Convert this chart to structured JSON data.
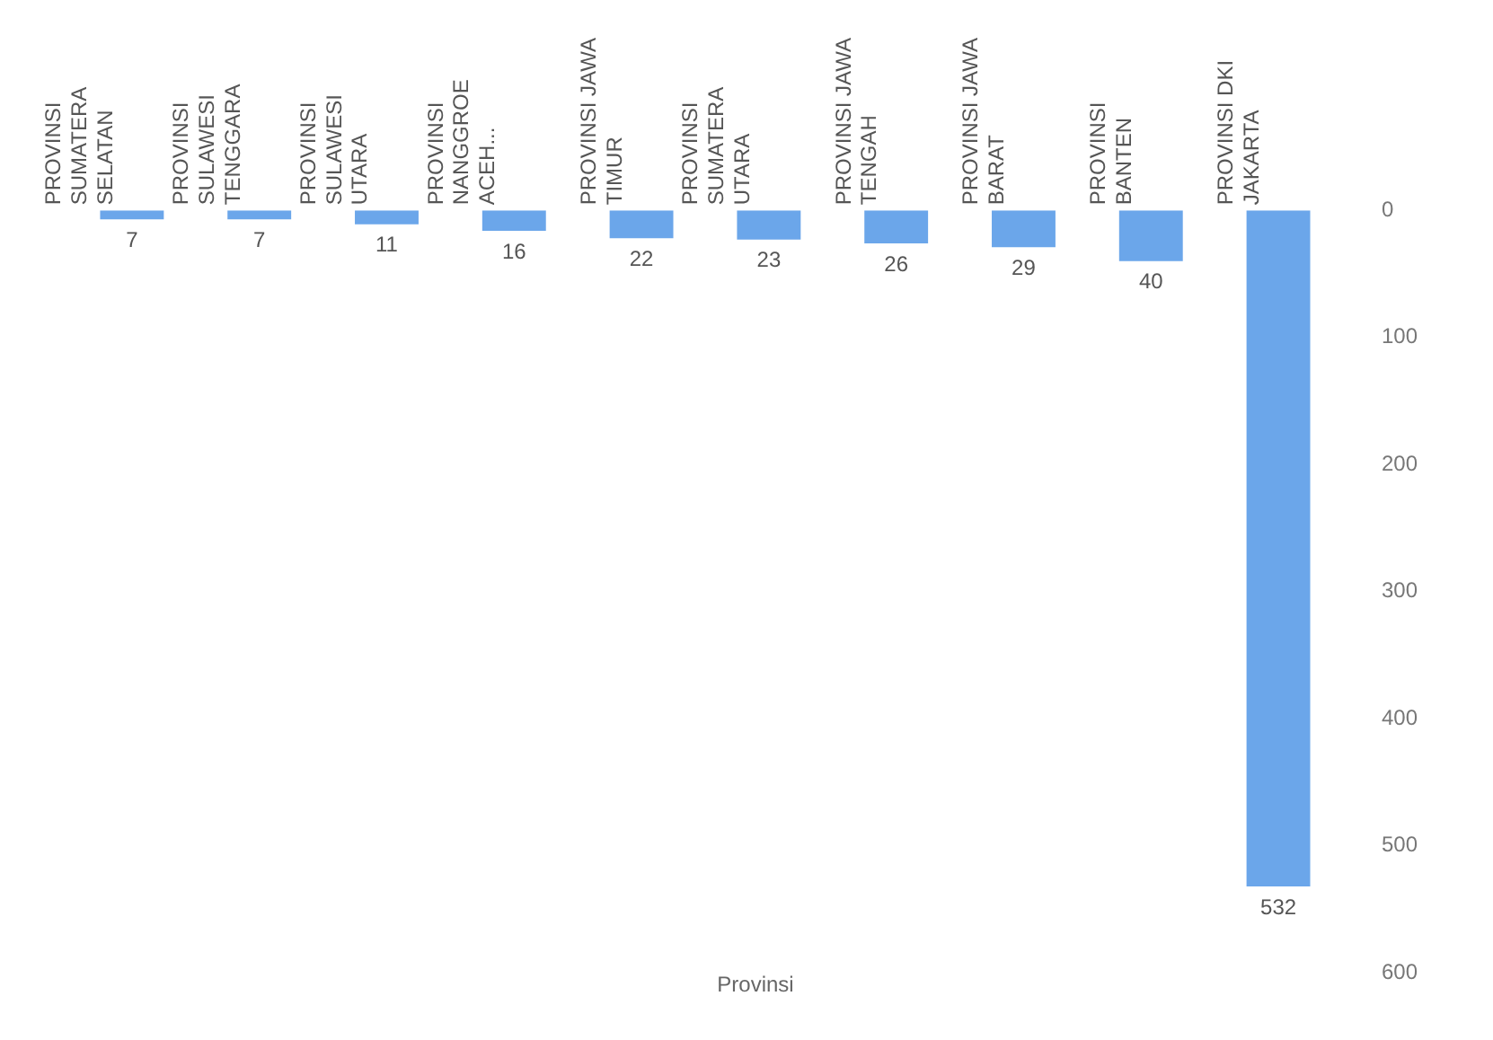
{
  "chart_data": {
    "type": "bar",
    "title": "Provinsi",
    "categories": [
      "PROVINSI SUMATERA SELATAN",
      "PROVINSI SULAWESI TENGGARA",
      "PROVINSI SULAWESI UTARA",
      "PROVINSI NANGGROE ACEH...",
      "PROVINSI JAWA TIMUR",
      "PROVINSI SUMATERA UTARA",
      "PROVINSI JAWA TENGAH",
      "PROVINSI JAWA BARAT",
      "PROVINSI BANTEN",
      "PROVINSI DKI JAKARTA"
    ],
    "values": [
      7,
      7,
      11,
      16,
      22,
      23,
      26,
      29,
      40,
      532
    ],
    "color": "#6ba6ea",
    "ylim": [
      600,
      0
    ],
    "yticks": [
      0,
      100,
      200,
      300,
      400,
      500,
      600
    ],
    "grid": false,
    "data_labels": true
  }
}
